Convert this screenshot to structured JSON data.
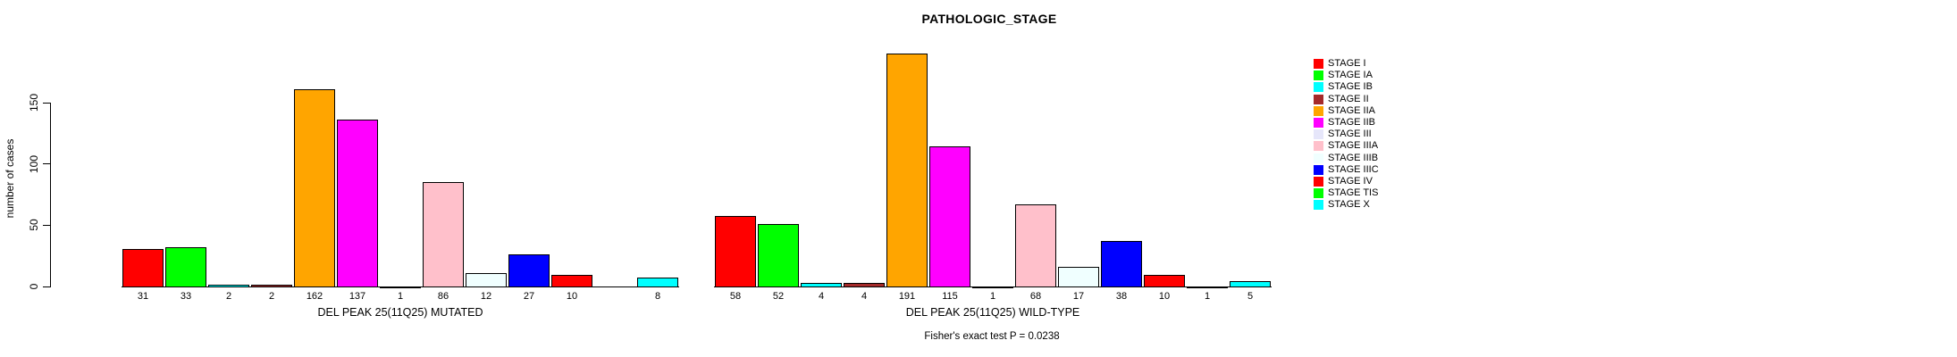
{
  "chart_data": {
    "type": "bar",
    "title": "PATHOLOGIC_STAGE",
    "ylabel": "number of cases",
    "xlabel": "",
    "axis_ticks": [
      0,
      50,
      100,
      150
    ],
    "ylim": [
      0,
      195
    ],
    "grid": false,
    "legend_position": "right",
    "categories": [
      "STAGE I",
      "STAGE IA",
      "STAGE IB",
      "STAGE II",
      "STAGE IIA",
      "STAGE IIB",
      "STAGE III",
      "STAGE IIIA",
      "STAGE IIIB",
      "STAGE IIIC",
      "STAGE IV",
      "STAGE TIS",
      "STAGE X"
    ],
    "series": [
      {
        "name": "DEL PEAK 25(11Q25) MUTATED",
        "values": [
          31,
          33,
          2,
          2,
          162,
          137,
          1,
          86,
          12,
          27,
          10,
          0,
          8
        ],
        "bar_labels": [
          "31",
          "33",
          "2",
          "2",
          "162",
          "137",
          "1",
          "86",
          "12",
          "27",
          "10",
          "",
          "8"
        ]
      },
      {
        "name": "DEL PEAK 25(11Q25) WILD-TYPE",
        "values": [
          58,
          52,
          4,
          4,
          191,
          115,
          1,
          68,
          17,
          38,
          10,
          1,
          5
        ],
        "bar_labels": [
          "58",
          "52",
          "4",
          "4",
          "191",
          "115",
          "1",
          "68",
          "17",
          "38",
          "10",
          "1",
          "5"
        ]
      }
    ],
    "annotation": "Fisher's exact test P = 0.0238"
  },
  "legend": {
    "items": [
      {
        "label": "STAGE I",
        "color": "#FF0000"
      },
      {
        "label": "STAGE IA",
        "color": "#00FF00"
      },
      {
        "label": "STAGE IB",
        "color": "#00FFFF"
      },
      {
        "label": "STAGE II",
        "color": "#A52A2A"
      },
      {
        "label": "STAGE IIA",
        "color": "#FFA500"
      },
      {
        "label": "STAGE IIB",
        "color": "#FF00FF"
      },
      {
        "label": "STAGE III",
        "color": "#E6E6FA"
      },
      {
        "label": "STAGE IIIA",
        "color": "#FFC0CB"
      },
      {
        "label": "STAGE IIIB",
        "color": "#F0FFFF"
      },
      {
        "label": "STAGE IIIC",
        "color": "#0000FF"
      },
      {
        "label": "STAGE IV",
        "color": "#FF0000"
      },
      {
        "label": "STAGE TIS",
        "color": "#00FF00"
      },
      {
        "label": "STAGE X",
        "color": "#00FFFF"
      }
    ]
  }
}
